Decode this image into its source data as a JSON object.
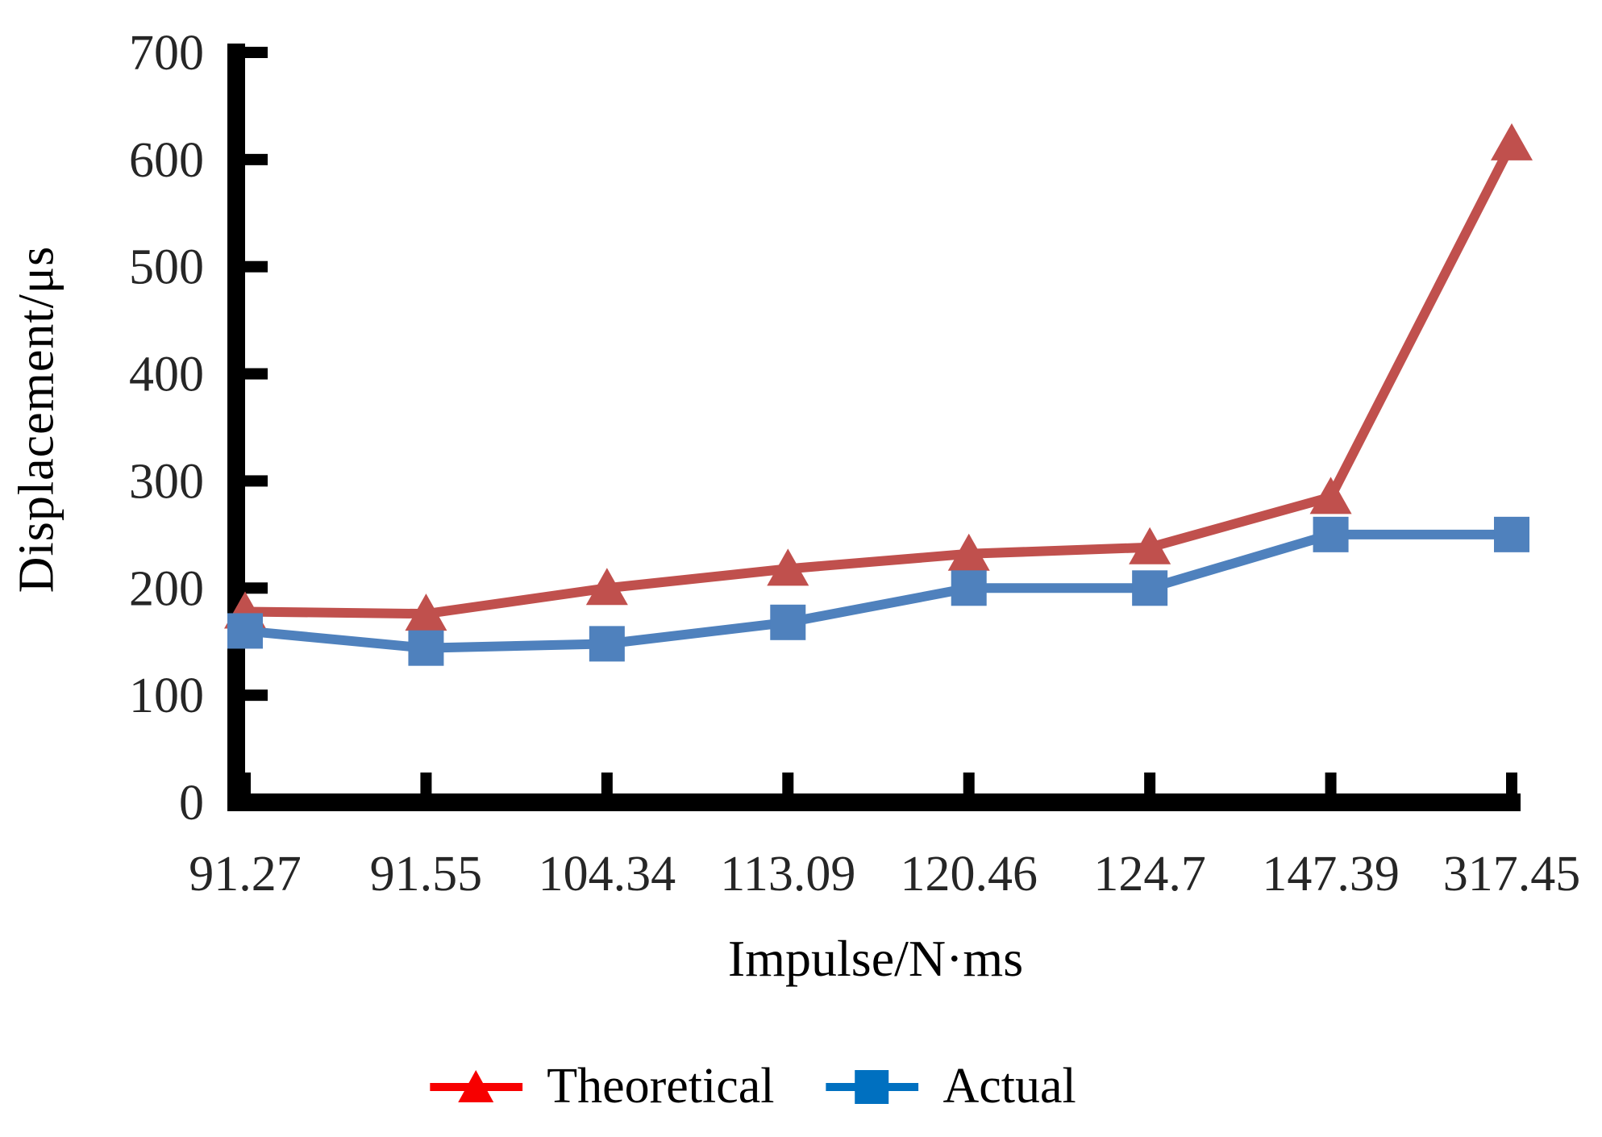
{
  "chart_data": {
    "type": "line",
    "title": "",
    "categories": [
      "91.27",
      "91.55",
      "104.34",
      "113.09",
      "120.46",
      "124.7",
      "147.39",
      "317.45"
    ],
    "series": [
      {
        "name": "Theoretical",
        "values": [
          178,
          176,
          200,
          218,
          232,
          238,
          285,
          615
        ],
        "color": "#C0504D",
        "legend_color": "#F70000",
        "marker": "triangle"
      },
      {
        "name": "Actual",
        "values": [
          160,
          144,
          148,
          168,
          200,
          200,
          250,
          250
        ],
        "color": "#4F81BD",
        "legend_color": "#0070C0",
        "marker": "square"
      }
    ],
    "xlabel": "Impulse/N·ms",
    "ylabel": "Displacement/μs",
    "ylim": [
      0,
      700
    ],
    "y_ticks": [
      0,
      100,
      200,
      300,
      400,
      500,
      600,
      700
    ],
    "grid": false,
    "legend_position": "bottom",
    "axis_color": "#000000",
    "tick_label_color": "#262626"
  }
}
